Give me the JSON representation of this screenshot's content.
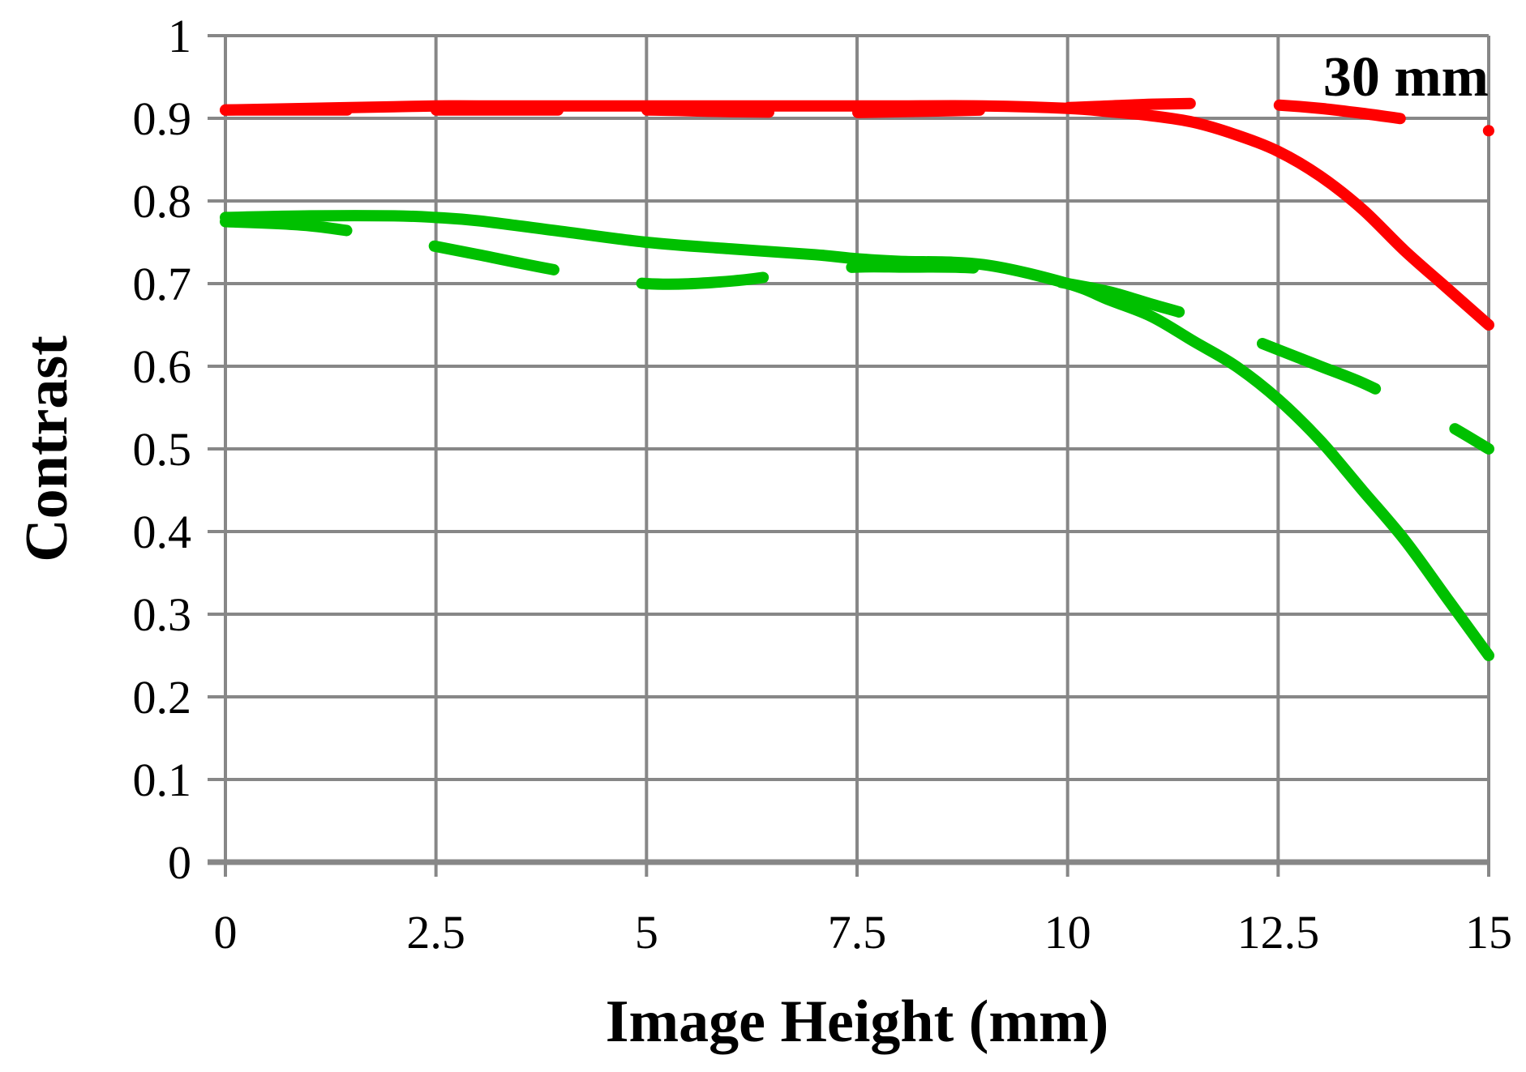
{
  "chart_data": {
    "type": "line",
    "title": "",
    "annotation": "30 mm",
    "xlabel": "Image Height (mm)",
    "ylabel": "Contrast",
    "xlim": [
      0,
      15
    ],
    "ylim": [
      0,
      1
    ],
    "x_ticks": [
      "0",
      "2.5",
      "5",
      "7.5",
      "10",
      "12.5",
      "15"
    ],
    "y_ticks": [
      "0",
      "0.1",
      "0.2",
      "0.3",
      "0.4",
      "0.5",
      "0.6",
      "0.7",
      "0.8",
      "0.9",
      "1"
    ],
    "grid": true,
    "legend": "none",
    "x": [
      0,
      1,
      2,
      2.5,
      3,
      4,
      5,
      6,
      7,
      7.5,
      8,
      9,
      10,
      10.5,
      11,
      11.5,
      12,
      12.5,
      13,
      13.5,
      14,
      14.5,
      15
    ],
    "series": [
      {
        "name": "red-solid",
        "color": "#ff0000",
        "dash": "solid",
        "values": [
          0.91,
          0.912,
          0.914,
          0.915,
          0.915,
          0.915,
          0.915,
          0.915,
          0.915,
          0.915,
          0.915,
          0.915,
          0.912,
          0.908,
          0.903,
          0.895,
          0.88,
          0.86,
          0.83,
          0.79,
          0.74,
          0.695,
          0.65
        ]
      },
      {
        "name": "red-dashed",
        "color": "#ff0000",
        "dash": "dashed",
        "values": [
          0.91,
          0.91,
          0.91,
          0.91,
          0.91,
          0.91,
          0.91,
          0.908,
          0.907,
          0.907,
          0.908,
          0.91,
          0.913,
          0.915,
          0.917,
          0.918,
          0.918,
          0.916,
          0.912,
          0.906,
          0.899,
          0.892,
          0.885
        ]
      },
      {
        "name": "green-solid",
        "color": "#00c000",
        "dash": "solid",
        "values": [
          0.78,
          0.782,
          0.782,
          0.78,
          0.776,
          0.763,
          0.75,
          0.742,
          0.735,
          0.73,
          0.727,
          0.723,
          0.7,
          0.68,
          0.66,
          0.63,
          0.6,
          0.56,
          0.51,
          0.45,
          0.39,
          0.32,
          0.25
        ]
      },
      {
        "name": "green-dashed",
        "color": "#00c000",
        "dash": "dashed",
        "values": [
          0.775,
          0.77,
          0.755,
          0.745,
          0.735,
          0.715,
          0.7,
          0.703,
          0.716,
          0.72,
          0.72,
          0.718,
          0.7,
          0.69,
          0.675,
          0.66,
          0.64,
          0.62,
          0.6,
          0.58,
          0.555,
          0.53,
          0.5
        ]
      }
    ]
  }
}
